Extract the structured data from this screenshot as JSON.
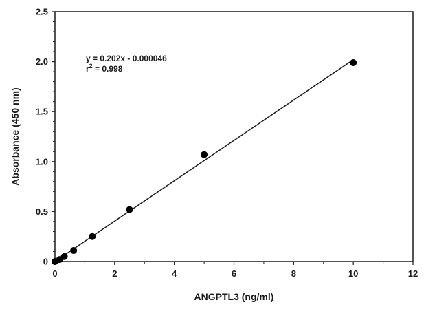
{
  "chart_data": {
    "type": "scatter",
    "title": "",
    "xlabel": "ANGPTL3 (ng/ml)",
    "ylabel": "Absorbance (450 nm)",
    "xlim": [
      0,
      12
    ],
    "ylim": [
      0,
      2.5
    ],
    "x_ticks": [
      0,
      2,
      4,
      6,
      8,
      10,
      12
    ],
    "y_ticks": [
      0,
      0.5,
      1.0,
      1.5,
      2.0,
      2.5
    ],
    "x_tick_labels": [
      "0",
      "2",
      "4",
      "6",
      "8",
      "10",
      "12"
    ],
    "y_tick_labels": [
      "0",
      "0.5",
      "1.0",
      "1.5",
      "2.0",
      "2.5"
    ],
    "grid": false,
    "points": [
      {
        "x": 0,
        "y": 0
      },
      {
        "x": 0.156,
        "y": 0.02
      },
      {
        "x": 0.313,
        "y": 0.05
      },
      {
        "x": 0.625,
        "y": 0.11
      },
      {
        "x": 1.25,
        "y": 0.25
      },
      {
        "x": 2.5,
        "y": 0.52
      },
      {
        "x": 5,
        "y": 1.07
      },
      {
        "x": 10,
        "y": 1.99
      }
    ],
    "fit_line": {
      "slope": 0.202,
      "intercept": -4.6e-05,
      "x_range": [
        0,
        10
      ]
    },
    "annotation": {
      "equation": "y = 0.202x - 0.000046",
      "r_label": "r",
      "r_superscript": "2",
      "r_value": " = 0.998"
    },
    "colors": {
      "marker": "#000000",
      "line": "#1a1a1a",
      "axis": "#1a1a1a"
    }
  }
}
